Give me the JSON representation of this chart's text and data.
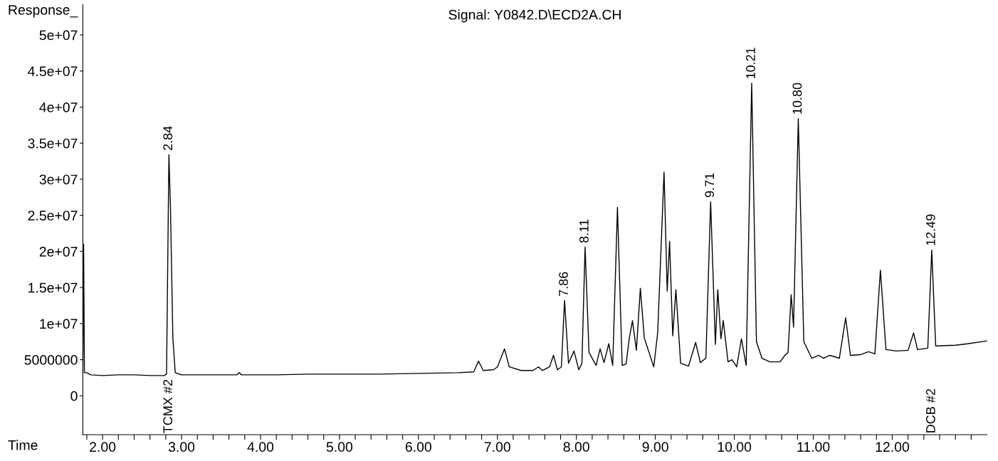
{
  "chart_data": {
    "type": "line",
    "title": "Signal: Y0842.D\\ECD2A.CH",
    "xlabel": "Time",
    "ylabel": "Response_",
    "x": [
      1.75,
      1.76,
      1.77,
      1.8,
      1.85,
      2.0,
      2.2,
      2.4,
      2.6,
      2.78,
      2.81,
      2.84,
      2.86,
      2.89,
      2.92,
      3.0,
      3.5,
      3.7,
      3.73,
      3.76,
      4.2,
      4.6,
      5.0,
      5.5,
      6.0,
      6.5,
      6.7,
      6.76,
      6.82,
      6.95,
      7.0,
      7.09,
      7.15,
      7.3,
      7.45,
      7.52,
      7.57,
      7.66,
      7.71,
      7.76,
      7.81,
      7.85,
      7.9,
      7.97,
      8.03,
      8.07,
      8.11,
      8.16,
      8.25,
      8.3,
      8.35,
      8.41,
      8.46,
      8.52,
      8.58,
      8.63,
      8.67,
      8.71,
      8.76,
      8.81,
      8.86,
      8.98,
      9.03,
      9.11,
      9.15,
      9.18,
      9.22,
      9.26,
      9.32,
      9.42,
      9.51,
      9.57,
      9.64,
      9.7,
      9.76,
      9.79,
      9.83,
      9.86,
      9.92,
      9.97,
      10.03,
      10.09,
      10.15,
      10.22,
      10.28,
      10.35,
      10.45,
      10.58,
      10.64,
      10.68,
      10.72,
      10.75,
      10.81,
      10.88,
      10.98,
      11.07,
      11.13,
      11.21,
      11.33,
      11.41,
      11.47,
      11.6,
      11.7,
      11.78,
      11.85,
      11.92,
      12.05,
      12.2,
      12.27,
      12.32,
      12.45,
      12.5,
      12.55,
      12.8,
      12.95,
      13.2
    ],
    "series": [
      {
        "color": "#000000",
        "values": [
          3000000.0,
          21000000.0,
          3200000.0,
          3200000.0,
          2900000.0,
          2800000.0,
          2900000.0,
          2900000.0,
          2800000.0,
          2800000.0,
          3000000.0,
          33400000.0,
          26000000.0,
          8000000.0,
          3200000.0,
          2900000.0,
          2900000.0,
          2900000.0,
          3200000.0,
          2900000.0,
          2900000.0,
          3000000.0,
          3000000.0,
          3000000.0,
          3100000.0,
          3200000.0,
          3300000.0,
          4800000.0,
          3500000.0,
          3600000.0,
          4000000.0,
          6500000.0,
          4000000.0,
          3500000.0,
          3500000.0,
          4000000.0,
          3500000.0,
          4000000.0,
          5600000.0,
          3600000.0,
          4000000.0,
          13200000.0,
          4500000.0,
          6200000.0,
          3600000.0,
          4500000.0,
          20600000.0,
          6000000.0,
          4200000.0,
          6500000.0,
          4600000.0,
          7200000.0,
          4200000.0,
          26100000.0,
          4200000.0,
          4400000.0,
          8000000.0,
          10400000.0,
          6300000.0,
          14900000.0,
          8000000.0,
          4000000.0,
          8800000.0,
          31000000.0,
          14500000.0,
          21400000.0,
          8300000.0,
          14700000.0,
          4500000.0,
          4100000.0,
          7400000.0,
          4600000.0,
          5200000.0,
          26900000.0,
          7100000.0,
          14700000.0,
          7900000.0,
          10400000.0,
          4700000.0,
          5000000.0,
          4000000.0,
          7900000.0,
          4200000.0,
          43300000.0,
          7500000.0,
          5200000.0,
          4700000.0,
          4700000.0,
          5600000.0,
          6000000.0,
          14000000.0,
          9500000.0,
          38400000.0,
          7500000.0,
          5200000.0,
          5600000.0,
          5200000.0,
          5600000.0,
          5200000.0,
          10800000.0,
          5600000.0,
          5700000.0,
          6100000.0,
          5800000.0,
          17400000.0,
          6400000.0,
          6200000.0,
          6300000.0,
          8700000.0,
          6400000.0,
          6600000.0,
          20200000.0,
          6900000.0,
          7000000.0,
          7200000.0,
          7600000.0
        ]
      }
    ],
    "xlim": [
      1.75,
      13.2
    ],
    "ylim": [
      -5400000,
      54200000
    ],
    "xticks": [
      {
        "value": 1.8,
        "label": null
      },
      {
        "value": 2,
        "label": "2.00"
      },
      {
        "value": 2.2,
        "label": null
      },
      {
        "value": 2.4,
        "label": null
      },
      {
        "value": 2.6,
        "label": null
      },
      {
        "value": 2.8,
        "label": null
      },
      {
        "value": 3,
        "label": "3.00"
      },
      {
        "value": 3.2,
        "label": null
      },
      {
        "value": 3.4,
        "label": null
      },
      {
        "value": 3.6,
        "label": null
      },
      {
        "value": 3.8,
        "label": null
      },
      {
        "value": 4,
        "label": "4.00"
      },
      {
        "value": 4.2,
        "label": null
      },
      {
        "value": 4.4,
        "label": null
      },
      {
        "value": 4.6,
        "label": null
      },
      {
        "value": 4.8,
        "label": null
      },
      {
        "value": 5,
        "label": "5.00"
      },
      {
        "value": 5.2,
        "label": null
      },
      {
        "value": 5.4,
        "label": null
      },
      {
        "value": 5.6,
        "label": null
      },
      {
        "value": 5.8,
        "label": null
      },
      {
        "value": 6,
        "label": "6.00"
      },
      {
        "value": 6.2,
        "label": null
      },
      {
        "value": 6.4,
        "label": null
      },
      {
        "value": 6.6,
        "label": null
      },
      {
        "value": 6.8,
        "label": null
      },
      {
        "value": 7,
        "label": "7.00"
      },
      {
        "value": 7.2,
        "label": null
      },
      {
        "value": 7.4,
        "label": null
      },
      {
        "value": 7.6,
        "label": null
      },
      {
        "value": 7.8,
        "label": null
      },
      {
        "value": 8,
        "label": "8.00"
      },
      {
        "value": 8.2,
        "label": null
      },
      {
        "value": 8.4,
        "label": null
      },
      {
        "value": 8.6,
        "label": null
      },
      {
        "value": 8.8,
        "label": null
      },
      {
        "value": 9,
        "label": "9.00"
      },
      {
        "value": 9.2,
        "label": null
      },
      {
        "value": 9.4,
        "label": null
      },
      {
        "value": 9.6,
        "label": null
      },
      {
        "value": 9.8,
        "label": null
      },
      {
        "value": 10,
        "label": "10.00"
      },
      {
        "value": 10.2,
        "label": null
      },
      {
        "value": 10.4,
        "label": null
      },
      {
        "value": 10.6,
        "label": null
      },
      {
        "value": 10.8,
        "label": null
      },
      {
        "value": 11,
        "label": "11.00"
      },
      {
        "value": 11.2,
        "label": null
      },
      {
        "value": 11.4,
        "label": null
      },
      {
        "value": 11.6,
        "label": null
      },
      {
        "value": 11.8,
        "label": null
      },
      {
        "value": 12,
        "label": "12.00"
      },
      {
        "value": 12.2,
        "label": null
      },
      {
        "value": 12.4,
        "label": null
      },
      {
        "value": 12.6,
        "label": null
      },
      {
        "value": 12.8,
        "label": null
      },
      {
        "value": 13,
        "label": null
      }
    ],
    "yticks": [
      0,
      5000000,
      {
        "value": 10000000,
        "label": "1e+07"
      },
      {
        "value": 15000000,
        "label": "1.5e+07"
      },
      {
        "value": 20000000,
        "label": "2e+07"
      },
      {
        "value": 25000000,
        "label": "2.5e+07"
      },
      {
        "value": 30000000,
        "label": "3e+07"
      },
      {
        "value": 35000000,
        "label": "3.5e+07"
      },
      {
        "value": 40000000,
        "label": "4e+07"
      },
      {
        "value": 45000000,
        "label": "4.5e+07"
      },
      {
        "value": 50000000,
        "label": "5e+07"
      }
    ],
    "grid": false,
    "legend": false,
    "marker": "none",
    "line_style": "solid",
    "annotations": [
      {
        "text": "2.84",
        "x": 2.84,
        "y": 33400000
      },
      {
        "text": "7.86",
        "x": 7.85,
        "y": 13200000
      },
      {
        "text": "8.11",
        "x": 8.11,
        "y": 20600000
      },
      {
        "text": "9.71",
        "x": 9.7,
        "y": 26900000
      },
      {
        "text": "10.21",
        "x": 10.22,
        "y": 43300000
      },
      {
        "text": "10.80",
        "x": 10.81,
        "y": 38400000
      },
      {
        "text": "12.49",
        "x": 12.5,
        "y": 20200000
      },
      "TCMX #2",
      "DCB #2"
    ]
  }
}
